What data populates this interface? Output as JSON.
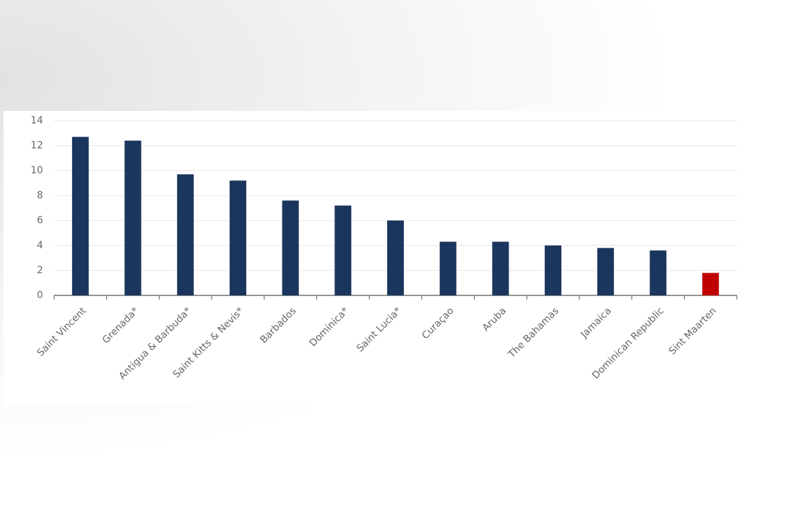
{
  "chart_data": {
    "type": "bar",
    "categories": [
      "Saint Vincent",
      "Grenada*",
      "Antigua & Barbuda*",
      "Saint Kitts & Nevis*",
      "Barbados",
      "Dominica*",
      "Saint Lucia*",
      "Curaçao",
      "Aruba",
      "The Bahamas",
      "Jamaica",
      "Dominican Republic",
      "Sint Maarten"
    ],
    "values": [
      12.7,
      12.4,
      9.7,
      9.2,
      7.6,
      7.2,
      6.0,
      4.3,
      4.3,
      4.0,
      3.8,
      3.6,
      1.8
    ],
    "colors": [
      "#1b365d",
      "#1b365d",
      "#1b365d",
      "#1b365d",
      "#1b365d",
      "#1b365d",
      "#1b365d",
      "#1b365d",
      "#1b365d",
      "#1b365d",
      "#1b365d",
      "#1b365d",
      "#c00000"
    ],
    "ylim": [
      0,
      14
    ],
    "yticks": [
      0,
      2,
      4,
      6,
      8,
      10,
      12,
      14
    ],
    "grid": true
  }
}
